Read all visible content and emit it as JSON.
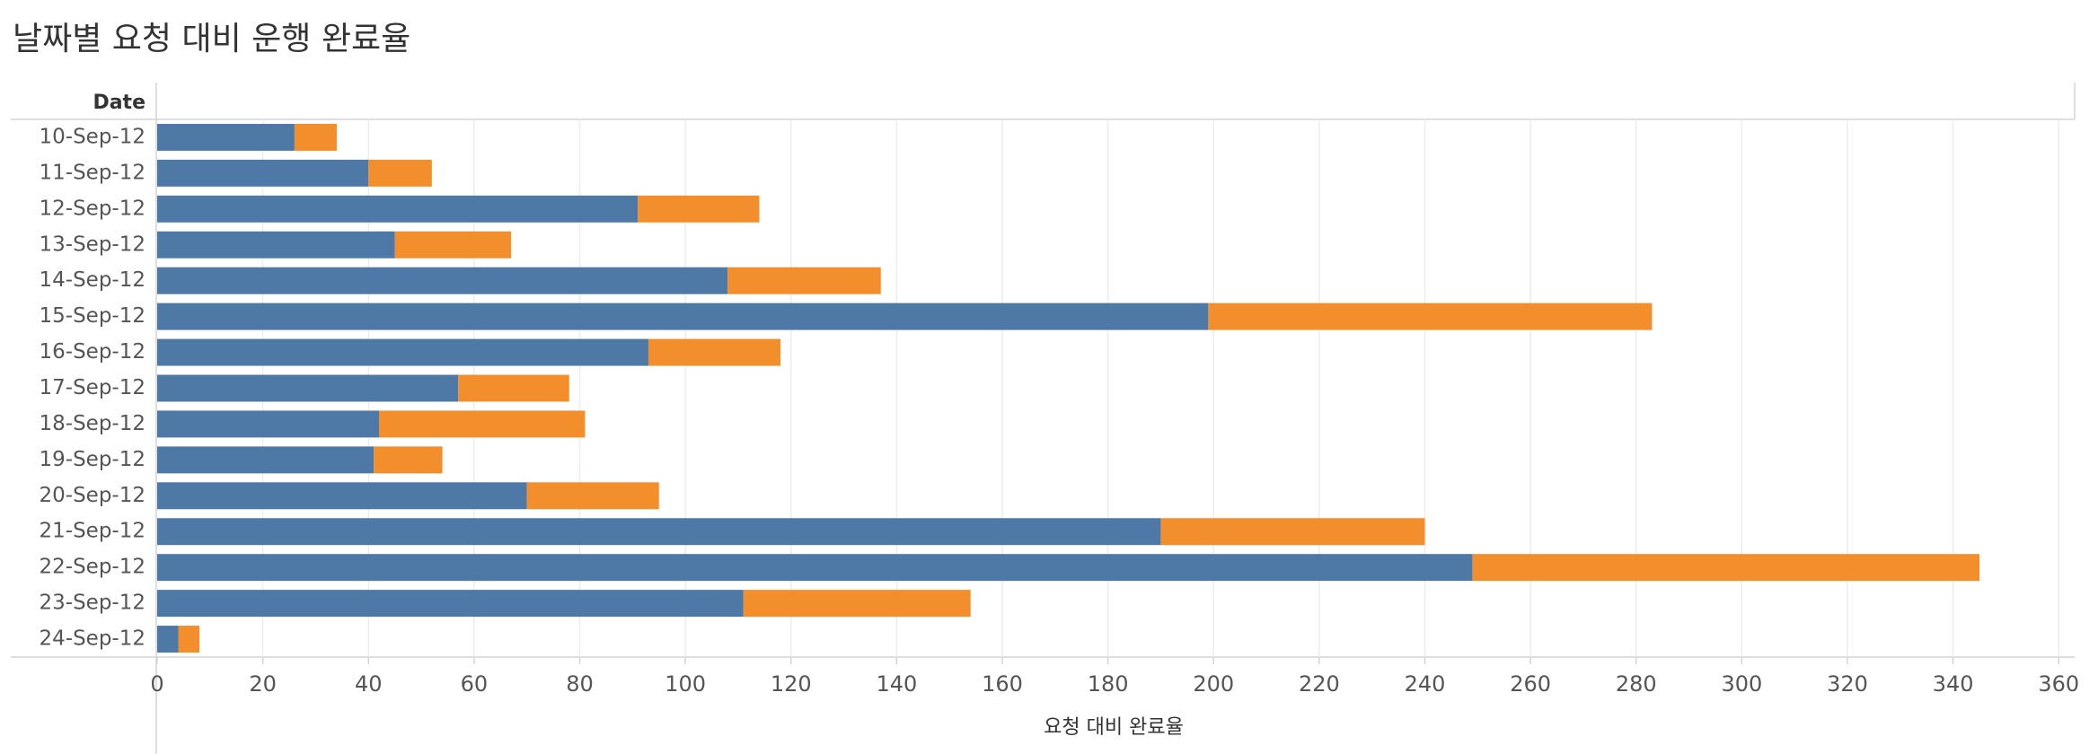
{
  "chart_data": {
    "type": "stacked-bar-horizontal",
    "title": "날짜별 요청 대비 운행 완료율",
    "y_label": "Date",
    "x_label": "요청 대비 완료율",
    "categories": [
      "10-Sep-12",
      "11-Sep-12",
      "12-Sep-12",
      "13-Sep-12",
      "14-Sep-12",
      "15-Sep-12",
      "16-Sep-12",
      "17-Sep-12",
      "18-Sep-12",
      "19-Sep-12",
      "20-Sep-12",
      "21-Sep-12",
      "22-Sep-12",
      "23-Sep-12",
      "24-Sep-12"
    ],
    "series": [
      {
        "color": "#4e79a7",
        "values": [
          26,
          40,
          91,
          45,
          108,
          199,
          93,
          57,
          42,
          41,
          70,
          190,
          249,
          111,
          4
        ]
      },
      {
        "color": "#f28e2b",
        "values": [
          8,
          12,
          23,
          22,
          29,
          84,
          25,
          21,
          39,
          13,
          25,
          50,
          96,
          43,
          4
        ]
      }
    ],
    "xlim": [
      0,
      362
    ],
    "xticks": [
      0,
      20,
      40,
      60,
      80,
      100,
      120,
      140,
      160,
      180,
      200,
      220,
      240,
      260,
      280,
      300,
      320,
      340,
      360
    ],
    "grid": true
  }
}
